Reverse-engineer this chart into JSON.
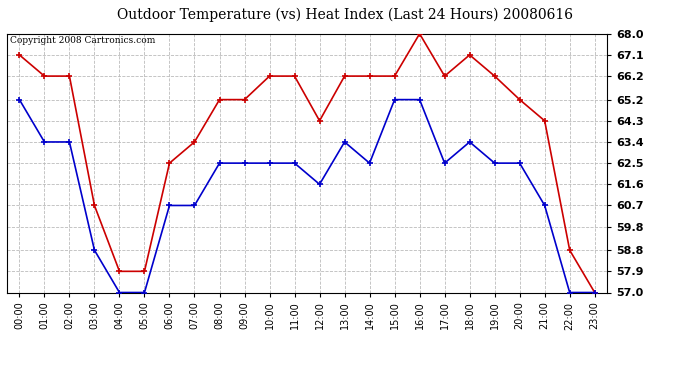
{
  "title": "Outdoor Temperature (vs) Heat Index (Last 24 Hours) 20080616",
  "copyright": "Copyright 2008 Cartronics.com",
  "hours": [
    "00:00",
    "01:00",
    "02:00",
    "03:00",
    "04:00",
    "05:00",
    "06:00",
    "07:00",
    "08:00",
    "09:00",
    "10:00",
    "11:00",
    "12:00",
    "13:00",
    "14:00",
    "15:00",
    "16:00",
    "17:00",
    "18:00",
    "19:00",
    "20:00",
    "21:00",
    "22:00",
    "23:00"
  ],
  "heat_index": [
    67.1,
    66.2,
    66.2,
    60.7,
    57.9,
    57.9,
    62.5,
    63.4,
    65.2,
    65.2,
    66.2,
    66.2,
    64.3,
    66.2,
    66.2,
    66.2,
    68.0,
    66.2,
    67.1,
    66.2,
    65.2,
    64.3,
    58.8,
    57.0
  ],
  "outdoor_temp": [
    65.2,
    63.4,
    63.4,
    58.8,
    57.0,
    57.0,
    60.7,
    60.7,
    62.5,
    62.5,
    62.5,
    62.5,
    61.6,
    63.4,
    62.5,
    65.2,
    65.2,
    62.5,
    63.4,
    62.5,
    62.5,
    60.7,
    57.0,
    57.0
  ],
  "y_ticks": [
    57.0,
    57.9,
    58.8,
    59.8,
    60.7,
    61.6,
    62.5,
    63.4,
    64.3,
    65.2,
    66.2,
    67.1,
    68.0
  ],
  "y_min": 57.0,
  "y_max": 68.0,
  "heat_index_color": "#cc0000",
  "outdoor_temp_color": "#0000cc",
  "background_color": "#ffffff",
  "plot_bg_color": "#ffffff",
  "grid_color": "#bbbbbb",
  "title_fontsize": 10,
  "copyright_fontsize": 6.5,
  "tick_fontsize": 7,
  "ytick_fontsize": 8
}
